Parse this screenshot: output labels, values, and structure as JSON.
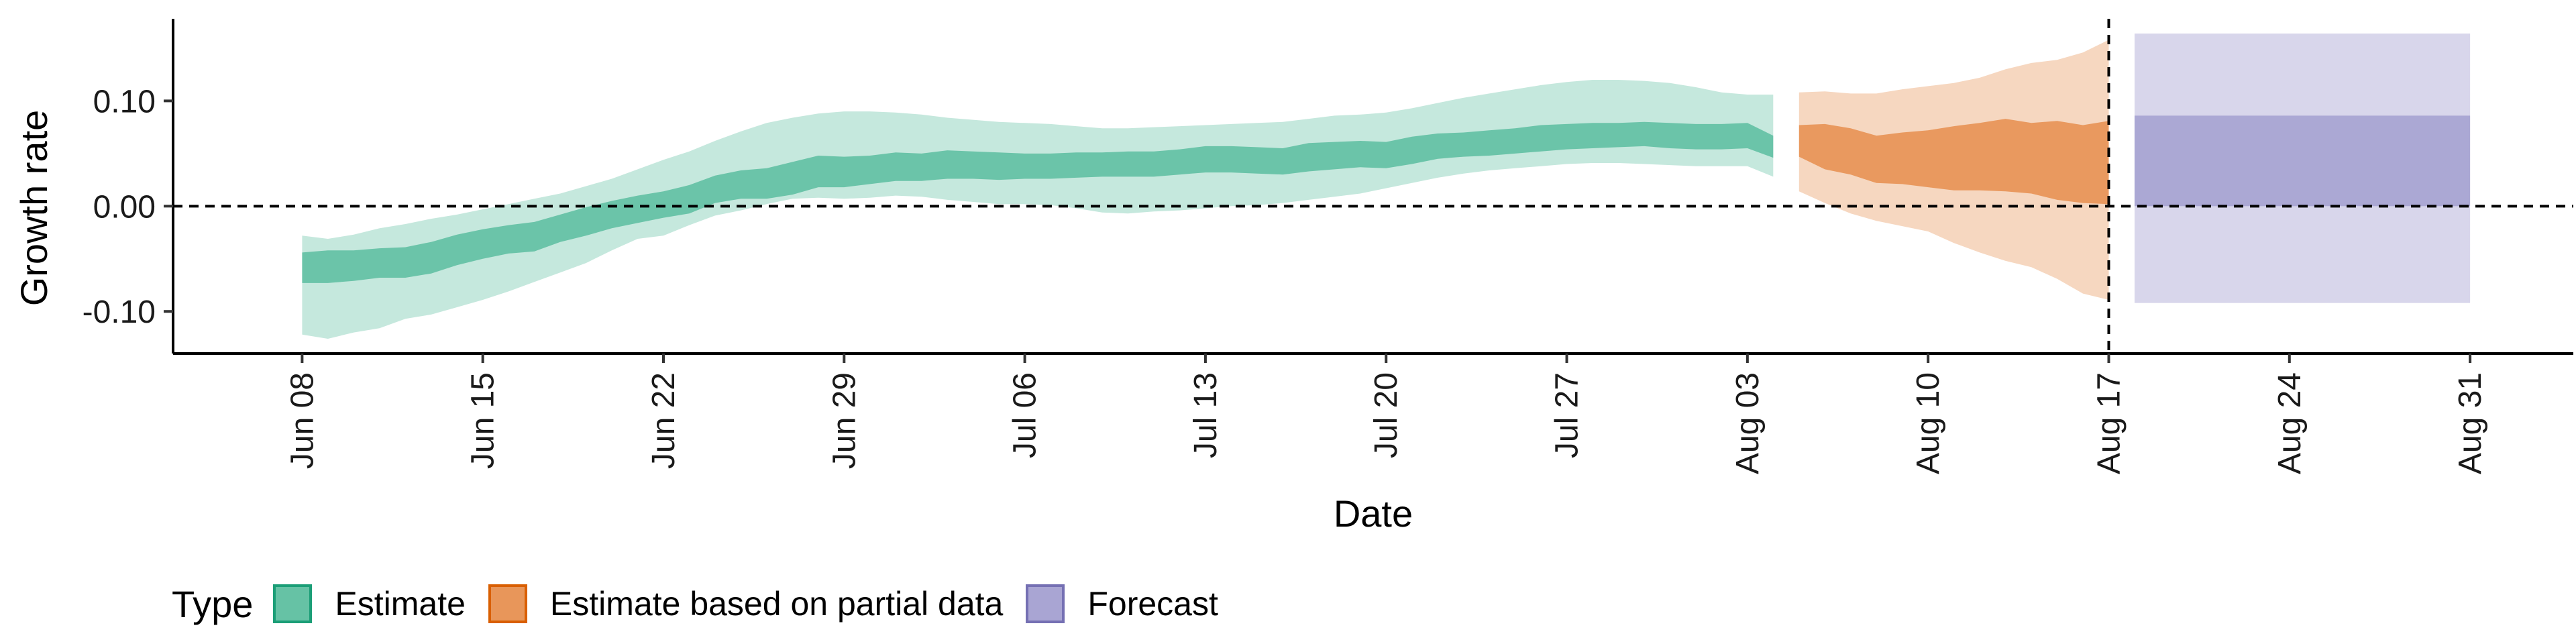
{
  "chart_data": {
    "type": "area",
    "xlabel": "Date",
    "ylabel": "Growth rate",
    "x_ticks": [
      "Jun 08",
      "Jun 15",
      "Jun 22",
      "Jun 29",
      "Jul 06",
      "Jul 13",
      "Jul 20",
      "Jul 27",
      "Aug 03",
      "Aug 10",
      "Aug 17",
      "Aug 24",
      "Aug 31"
    ],
    "y_ticks": [
      "-0.10",
      "0.00",
      "0.10"
    ],
    "ylim": [
      -0.14,
      0.178
    ],
    "xlim": [
      "2020-06-03",
      "2020-09-04"
    ],
    "hline": 0,
    "vline": "2020-08-17",
    "legend": {
      "title": "Type",
      "position": "bottom",
      "entries": [
        {
          "label": "Estimate",
          "fill": "#66c2a5",
          "border": "#1b9e77"
        },
        {
          "label": "Estimate based on partial data",
          "fill": "#e8965a",
          "border": "#d95f02"
        },
        {
          "label": "Forecast",
          "fill": "#a9a5d3",
          "border": "#7570b3"
        }
      ]
    },
    "series": [
      {
        "name": "Estimate",
        "color": "#66c2a5",
        "x": [
          "2020-06-08",
          "2020-06-09",
          "2020-06-10",
          "2020-06-11",
          "2020-06-12",
          "2020-06-13",
          "2020-06-14",
          "2020-06-15",
          "2020-06-16",
          "2020-06-17",
          "2020-06-18",
          "2020-06-19",
          "2020-06-20",
          "2020-06-21",
          "2020-06-22",
          "2020-06-23",
          "2020-06-24",
          "2020-06-25",
          "2020-06-26",
          "2020-06-27",
          "2020-06-28",
          "2020-06-29",
          "2020-06-30",
          "2020-07-01",
          "2020-07-02",
          "2020-07-03",
          "2020-07-04",
          "2020-07-05",
          "2020-07-06",
          "2020-07-07",
          "2020-07-08",
          "2020-07-09",
          "2020-07-10",
          "2020-07-11",
          "2020-07-12",
          "2020-07-13",
          "2020-07-14",
          "2020-07-15",
          "2020-07-16",
          "2020-07-17",
          "2020-07-18",
          "2020-07-19",
          "2020-07-20",
          "2020-07-21",
          "2020-07-22",
          "2020-07-23",
          "2020-07-24",
          "2020-07-25",
          "2020-07-26",
          "2020-07-27",
          "2020-07-28",
          "2020-07-29",
          "2020-07-30",
          "2020-07-31",
          "2020-08-01",
          "2020-08-02",
          "2020-08-03",
          "2020-08-04"
        ],
        "lower90": [
          -0.122,
          -0.126,
          -0.12,
          -0.116,
          -0.107,
          -0.103,
          -0.096,
          -0.089,
          -0.081,
          -0.072,
          -0.063,
          -0.054,
          -0.042,
          -0.031,
          -0.028,
          -0.018,
          -0.009,
          -0.004,
          0.002,
          0.007,
          0.008,
          0.007,
          0.008,
          0.01,
          0.009,
          0.006,
          0.004,
          0.002,
          0.002,
          0.001,
          -0.002,
          -0.006,
          -0.007,
          -0.005,
          -0.004,
          -0.002,
          0.0,
          0.001,
          0.003,
          0.006,
          0.009,
          0.012,
          0.017,
          0.022,
          0.027,
          0.031,
          0.034,
          0.036,
          0.038,
          0.04,
          0.041,
          0.041,
          0.04,
          0.039,
          0.038,
          0.038,
          0.038,
          0.028
        ],
        "lower50": [
          -0.073,
          -0.073,
          -0.071,
          -0.068,
          -0.068,
          -0.064,
          -0.056,
          -0.05,
          -0.045,
          -0.043,
          -0.034,
          -0.028,
          -0.021,
          -0.016,
          -0.011,
          -0.007,
          0.003,
          0.007,
          0.007,
          0.011,
          0.018,
          0.018,
          0.021,
          0.024,
          0.024,
          0.026,
          0.026,
          0.025,
          0.026,
          0.026,
          0.027,
          0.028,
          0.028,
          0.028,
          0.03,
          0.032,
          0.032,
          0.031,
          0.03,
          0.033,
          0.035,
          0.037,
          0.036,
          0.04,
          0.045,
          0.047,
          0.048,
          0.05,
          0.052,
          0.054,
          0.055,
          0.056,
          0.057,
          0.055,
          0.054,
          0.054,
          0.055,
          0.046
        ],
        "upper50": [
          -0.044,
          -0.042,
          -0.042,
          -0.04,
          -0.039,
          -0.034,
          -0.027,
          -0.022,
          -0.018,
          -0.015,
          -0.008,
          -0.001,
          0.005,
          0.01,
          0.014,
          0.02,
          0.029,
          0.034,
          0.036,
          0.042,
          0.048,
          0.047,
          0.048,
          0.051,
          0.05,
          0.053,
          0.052,
          0.051,
          0.05,
          0.05,
          0.051,
          0.051,
          0.052,
          0.052,
          0.054,
          0.057,
          0.057,
          0.056,
          0.055,
          0.06,
          0.061,
          0.062,
          0.061,
          0.066,
          0.069,
          0.07,
          0.072,
          0.074,
          0.077,
          0.078,
          0.079,
          0.079,
          0.08,
          0.079,
          0.078,
          0.078,
          0.079,
          0.067
        ],
        "upper90": [
          -0.028,
          -0.031,
          -0.027,
          -0.021,
          -0.017,
          -0.012,
          -0.008,
          -0.003,
          0.002,
          0.007,
          0.012,
          0.019,
          0.026,
          0.035,
          0.044,
          0.052,
          0.062,
          0.071,
          0.079,
          0.084,
          0.088,
          0.09,
          0.09,
          0.089,
          0.087,
          0.084,
          0.082,
          0.08,
          0.079,
          0.078,
          0.076,
          0.074,
          0.074,
          0.075,
          0.076,
          0.077,
          0.078,
          0.079,
          0.08,
          0.083,
          0.086,
          0.087,
          0.089,
          0.093,
          0.098,
          0.103,
          0.107,
          0.111,
          0.115,
          0.118,
          0.12,
          0.12,
          0.119,
          0.117,
          0.113,
          0.108,
          0.106,
          0.106
        ]
      },
      {
        "name": "Estimate based on partial data",
        "color": "#e8965a",
        "x": [
          "2020-08-05",
          "2020-08-06",
          "2020-08-07",
          "2020-08-08",
          "2020-08-09",
          "2020-08-10",
          "2020-08-11",
          "2020-08-12",
          "2020-08-13",
          "2020-08-14",
          "2020-08-15",
          "2020-08-16",
          "2020-08-17"
        ],
        "lower90": [
          0.014,
          0.003,
          -0.007,
          -0.014,
          -0.019,
          -0.024,
          -0.035,
          -0.044,
          -0.052,
          -0.058,
          -0.069,
          -0.083,
          -0.089
        ],
        "lower50": [
          0.047,
          0.035,
          0.03,
          0.022,
          0.021,
          0.018,
          0.015,
          0.015,
          0.014,
          0.012,
          0.006,
          0.003,
          0.002
        ],
        "upper50": [
          0.077,
          0.078,
          0.074,
          0.067,
          0.07,
          0.072,
          0.076,
          0.079,
          0.083,
          0.079,
          0.081,
          0.077,
          0.081
        ],
        "upper90": [
          0.108,
          0.109,
          0.107,
          0.107,
          0.111,
          0.114,
          0.117,
          0.122,
          0.13,
          0.136,
          0.139,
          0.146,
          0.158
        ]
      },
      {
        "name": "Forecast",
        "color": "#a9a5d3",
        "x_start": "2020-08-18",
        "x_end": "2020-08-31",
        "lower90": -0.092,
        "lower50": 0.0,
        "upper50": 0.086,
        "upper90": 0.164
      }
    ]
  }
}
